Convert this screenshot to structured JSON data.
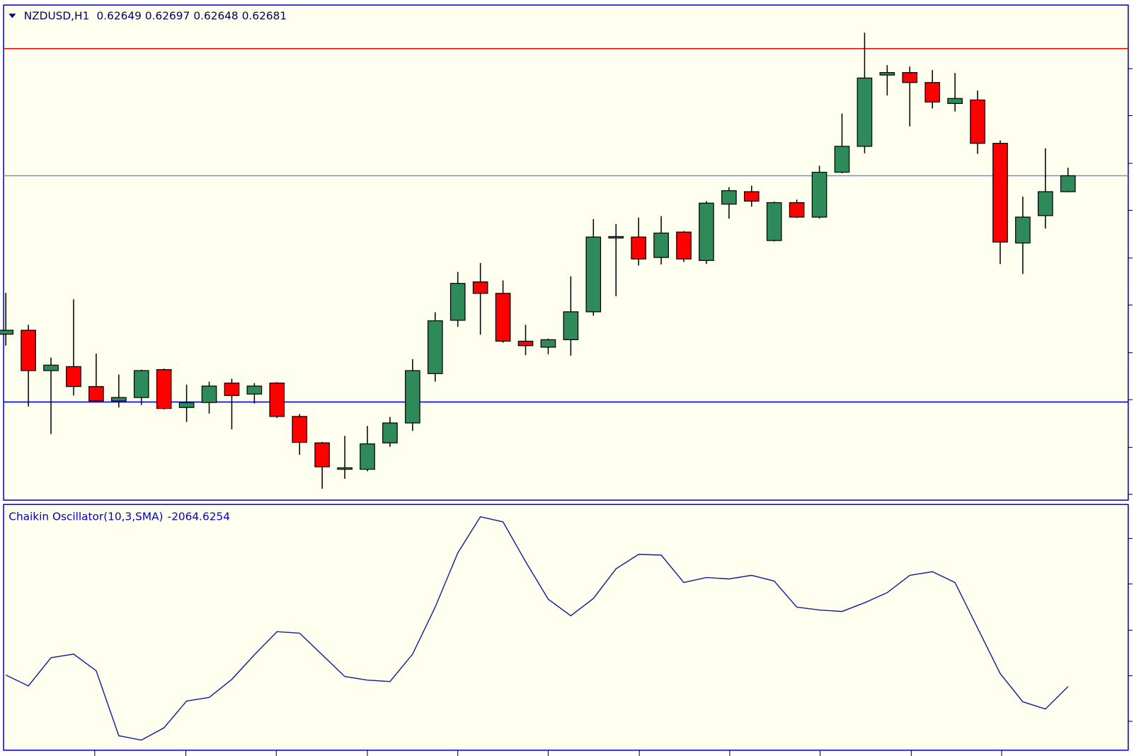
{
  "chart_data": [
    {
      "type": "candlestick",
      "title": "NZDUSD,H1",
      "open": [
        0.62363,
        0.62371,
        0.6229,
        0.62298,
        0.62258,
        0.62229,
        0.62236,
        0.62292,
        0.62216,
        0.62226,
        0.62265,
        0.62243,
        0.62265,
        0.62198,
        0.62145,
        0.62092,
        0.62092,
        0.62145,
        0.62185,
        0.62284,
        0.62391,
        0.62468,
        0.62445,
        0.62349,
        0.62337,
        0.62352,
        0.62408,
        0.62556,
        0.62558,
        0.62517,
        0.62568,
        0.62511,
        0.62624,
        0.62649,
        0.62551,
        0.62627,
        0.62598,
        0.62688,
        0.6274,
        0.62883,
        0.62888,
        0.62868,
        0.62826,
        0.62833,
        0.62746,
        0.62546,
        0.62601,
        0.62649
      ],
      "high": [
        0.62446,
        0.62382,
        0.62316,
        0.62433,
        0.62324,
        0.62282,
        0.62292,
        0.62294,
        0.62262,
        0.62268,
        0.62274,
        0.62265,
        0.62267,
        0.62203,
        0.62147,
        0.62159,
        0.62179,
        0.62197,
        0.62313,
        0.62407,
        0.62488,
        0.62506,
        0.62471,
        0.62382,
        0.62354,
        0.62479,
        0.62594,
        0.62584,
        0.62597,
        0.626,
        0.6257,
        0.6263,
        0.62658,
        0.62661,
        0.62629,
        0.62633,
        0.62701,
        0.62806,
        0.62968,
        0.62903,
        0.629,
        0.62893,
        0.62887,
        0.62852,
        0.62752,
        0.62639,
        0.62736,
        0.62697
      ],
      "low": [
        0.6234,
        0.62218,
        0.62163,
        0.6224,
        0.62227,
        0.62216,
        0.62221,
        0.62212,
        0.62187,
        0.62204,
        0.62172,
        0.62224,
        0.62195,
        0.62121,
        0.62053,
        0.62073,
        0.62088,
        0.62137,
        0.62169,
        0.62268,
        0.62378,
        0.62362,
        0.62346,
        0.62321,
        0.62323,
        0.6232,
        0.624,
        0.62439,
        0.62501,
        0.62503,
        0.62508,
        0.62504,
        0.62595,
        0.62619,
        0.62549,
        0.62596,
        0.62595,
        0.62686,
        0.62726,
        0.62842,
        0.6278,
        0.62816,
        0.6281,
        0.62725,
        0.62504,
        0.62484,
        0.62575,
        0.62648
      ],
      "close": [
        0.62371,
        0.6229,
        0.62301,
        0.62258,
        0.62229,
        0.62236,
        0.6229,
        0.62214,
        0.62226,
        0.62259,
        0.6224,
        0.62259,
        0.62198,
        0.62146,
        0.62097,
        0.62095,
        0.62143,
        0.62185,
        0.6229,
        0.6239,
        0.62465,
        0.62445,
        0.62349,
        0.6234,
        0.62352,
        0.62408,
        0.62558,
        0.62559,
        0.62514,
        0.62566,
        0.62514,
        0.62626,
        0.62651,
        0.6263,
        0.62627,
        0.62598,
        0.62688,
        0.6274,
        0.62877,
        0.62888,
        0.62868,
        0.62829,
        0.62836,
        0.62746,
        0.62548,
        0.62598,
        0.62649,
        0.62681
      ],
      "up_color": "#2f8a5a",
      "down_color": "#ff0000",
      "lines": [
        {
          "value": 0.62936,
          "color": "#ff0000"
        },
        {
          "value": 0.62681,
          "color": "#7f8fa8"
        },
        {
          "value": 0.62227,
          "color": "#0000ff"
        }
      ],
      "ylim": [
        0.62033,
        0.63022
      ]
    },
    {
      "type": "line",
      "title": "Chaikin Oscillator(10,3,SMA)",
      "values": [
        -1425,
        -2025,
        -465,
        -265,
        -1185,
        -4785,
        -5025,
        -4345,
        -2865,
        -2665,
        -1665,
        -305,
        975,
        895,
        -305,
        -1505,
        -1705,
        -1785,
        -265,
        2335,
        5335,
        7335,
        7055,
        4855,
        2775,
        1855,
        2815,
        4455,
        5255,
        5215,
        3695,
        3975,
        3895,
        4095,
        3775,
        2335,
        2175,
        2095,
        2575,
        3135,
        4095,
        4295,
        3695,
        1175,
        -1345,
        -2905,
        -3305,
        -2064.6254
      ],
      "color": "#1a1a9c",
      "ylim": [
        -5585,
        7935
      ]
    }
  ]
}
